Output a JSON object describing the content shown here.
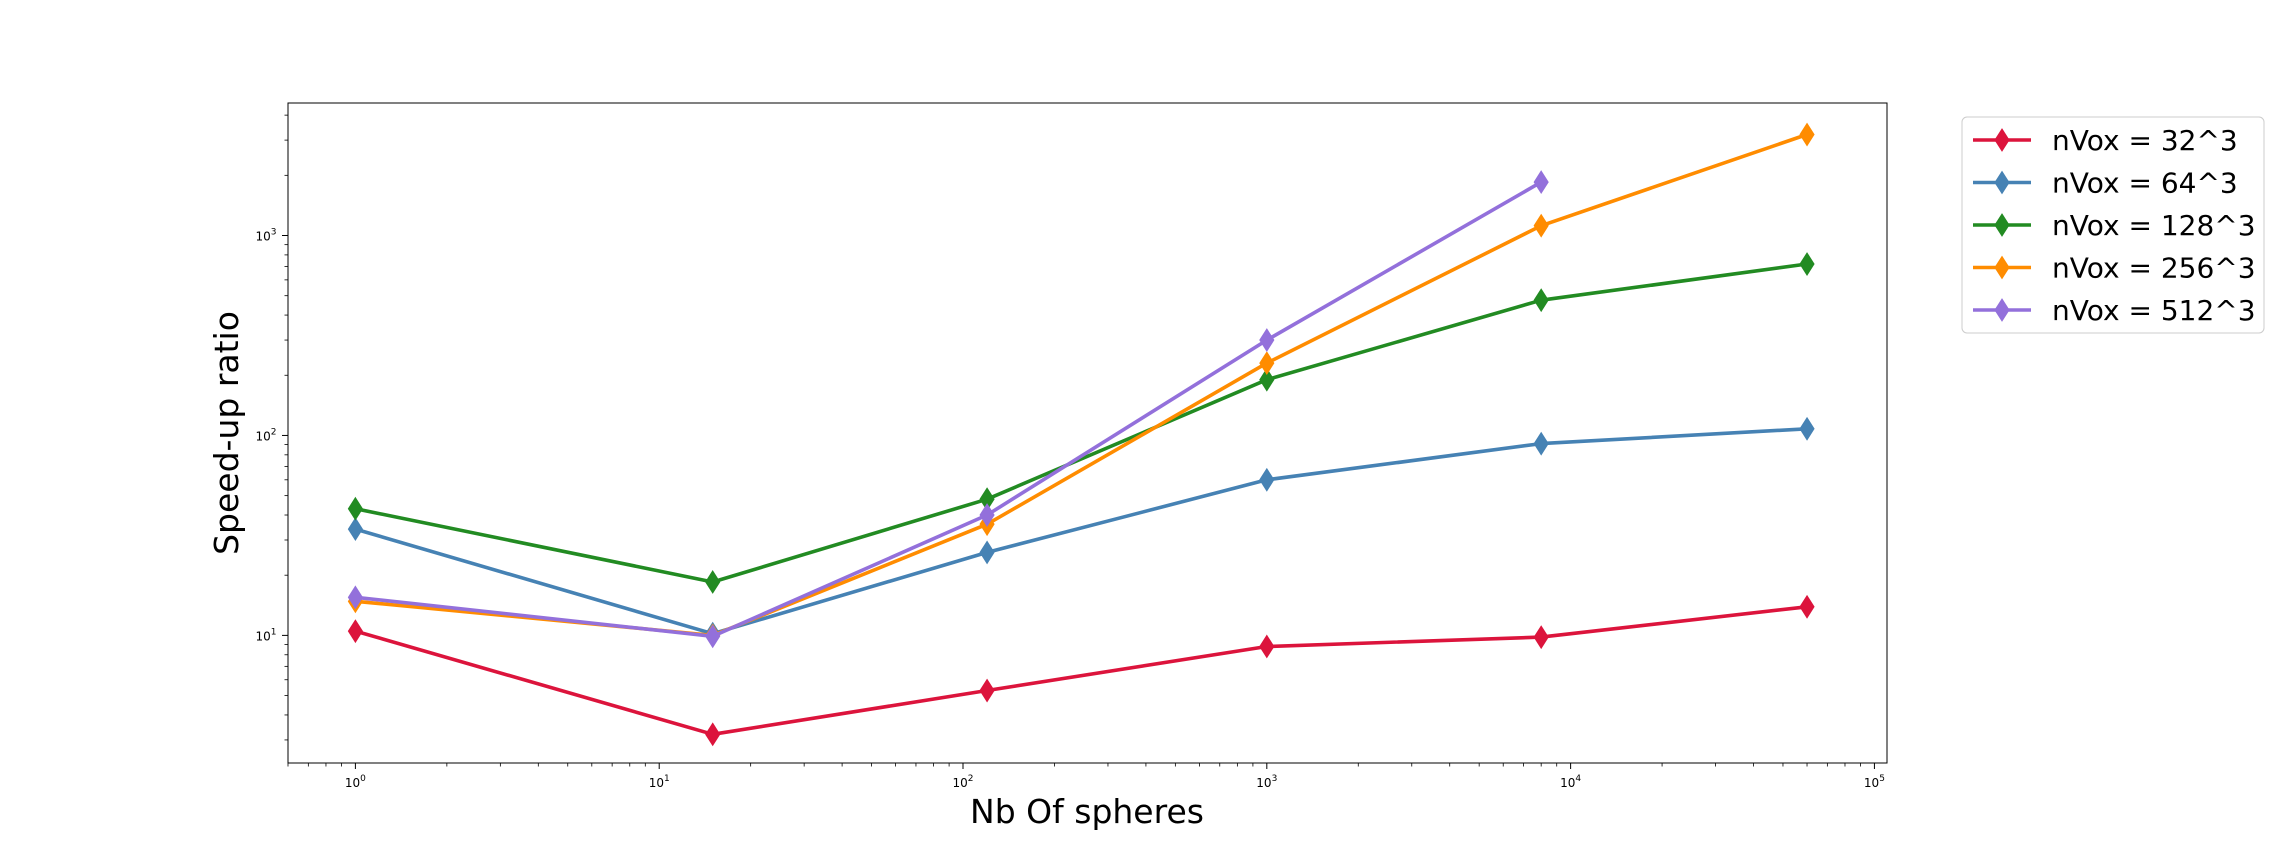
{
  "chart_data": {
    "type": "line",
    "xscale": "log",
    "yscale": "log",
    "xlabel": "Nb Of spheres",
    "ylabel": "Speed-up ratio",
    "xlim": [
      0.6,
      110000
    ],
    "ylim": [
      2.3,
      4600
    ],
    "x": [
      1,
      15,
      120,
      1000,
      8000,
      60000
    ],
    "xticks": [
      {
        "value": 1,
        "base": "10",
        "exp": "0"
      },
      {
        "value": 10,
        "base": "10",
        "exp": "1"
      },
      {
        "value": 100,
        "base": "10",
        "exp": "2"
      },
      {
        "value": 1000,
        "base": "10",
        "exp": "3"
      },
      {
        "value": 10000,
        "base": "10",
        "exp": "4"
      },
      {
        "value": 100000,
        "base": "10",
        "exp": "5"
      }
    ],
    "yticks": [
      {
        "value": 10,
        "base": "10",
        "exp": "1"
      },
      {
        "value": 100,
        "base": "10",
        "exp": "2"
      },
      {
        "value": 1000,
        "base": "10",
        "exp": "3"
      }
    ],
    "marker": "thin_diamond",
    "grid": false,
    "legend_position": "outside-upper-right",
    "series": [
      {
        "name": "nVox = 32^3",
        "color": "#dc143c",
        "x": [
          1,
          15,
          120,
          1000,
          8000,
          60000
        ],
        "values": [
          10.5,
          3.2,
          5.3,
          8.8,
          9.8,
          13.9
        ]
      },
      {
        "name": "nVox = 64^3",
        "color": "#4682b4",
        "x": [
          1,
          15,
          120,
          1000,
          8000,
          60000
        ],
        "values": [
          34,
          10.2,
          26,
          60,
          91,
          108
        ]
      },
      {
        "name": "nVox = 128^3",
        "color": "#228b22",
        "x": [
          1,
          15,
          120,
          1000,
          8000,
          60000
        ],
        "values": [
          43,
          18.5,
          48,
          190,
          475,
          720
        ]
      },
      {
        "name": "nVox = 256^3",
        "color": "#ff8c00",
        "x": [
          1,
          15,
          120,
          1000,
          8000,
          60000
        ],
        "values": [
          14.8,
          10,
          36,
          230,
          1120,
          3200
        ]
      },
      {
        "name": "nVox = 512^3",
        "color": "#9370db",
        "x": [
          1,
          15,
          120,
          1000,
          8000
        ],
        "values": [
          15.5,
          9.9,
          40,
          300,
          1850
        ]
      }
    ]
  }
}
